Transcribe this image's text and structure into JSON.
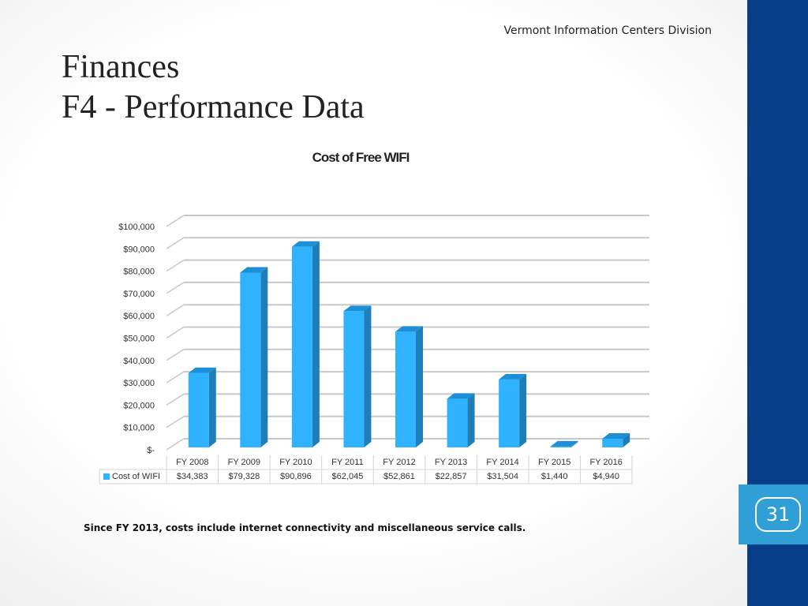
{
  "header": {
    "organization": "Vermont Information Centers Division"
  },
  "slide": {
    "title_line1": "Finances",
    "title_line2": "F4 - Performance Data",
    "footnote": "Since FY 2013, costs include internet connectivity and miscellaneous service calls.",
    "page_number": "31"
  },
  "colors": {
    "bar_front": "#2fb2ff",
    "bar_side": "#1e7fb8",
    "bar_top": "#1c8fd6",
    "sidebar": "#073e87",
    "page_badge": "#2f9fd6"
  },
  "chart_data": {
    "type": "bar",
    "title": "Cost of Free WIFI",
    "categories": [
      "FY 2008",
      "FY 2009",
      "FY 2010",
      "FY 2011",
      "FY 2012",
      "FY 2013",
      "FY 2014",
      "FY 2015",
      "FY 2016"
    ],
    "series": [
      {
        "name": "Cost of WIFI",
        "values": [
          34383,
          79328,
          90896,
          62045,
          52861,
          22857,
          31504,
          1440,
          4940
        ],
        "labels": [
          "$34,383",
          "$79,328",
          "$90,896",
          "$62,045",
          "$52,861",
          "$22,857",
          "$31,504",
          "$1,440",
          "$4,940"
        ]
      }
    ],
    "ylim": [
      0,
      100000
    ],
    "yticks": [
      0,
      10000,
      20000,
      30000,
      40000,
      50000,
      60000,
      70000,
      80000,
      90000,
      100000
    ],
    "ytick_labels": [
      "$-",
      "$10,000",
      "$20,000",
      "$30,000",
      "$40,000",
      "$50,000",
      "$60,000",
      "$70,000",
      "$80,000",
      "$90,000",
      "$100,000"
    ],
    "grid": true,
    "legend": "data-table-bottom",
    "style": "3d-column"
  }
}
